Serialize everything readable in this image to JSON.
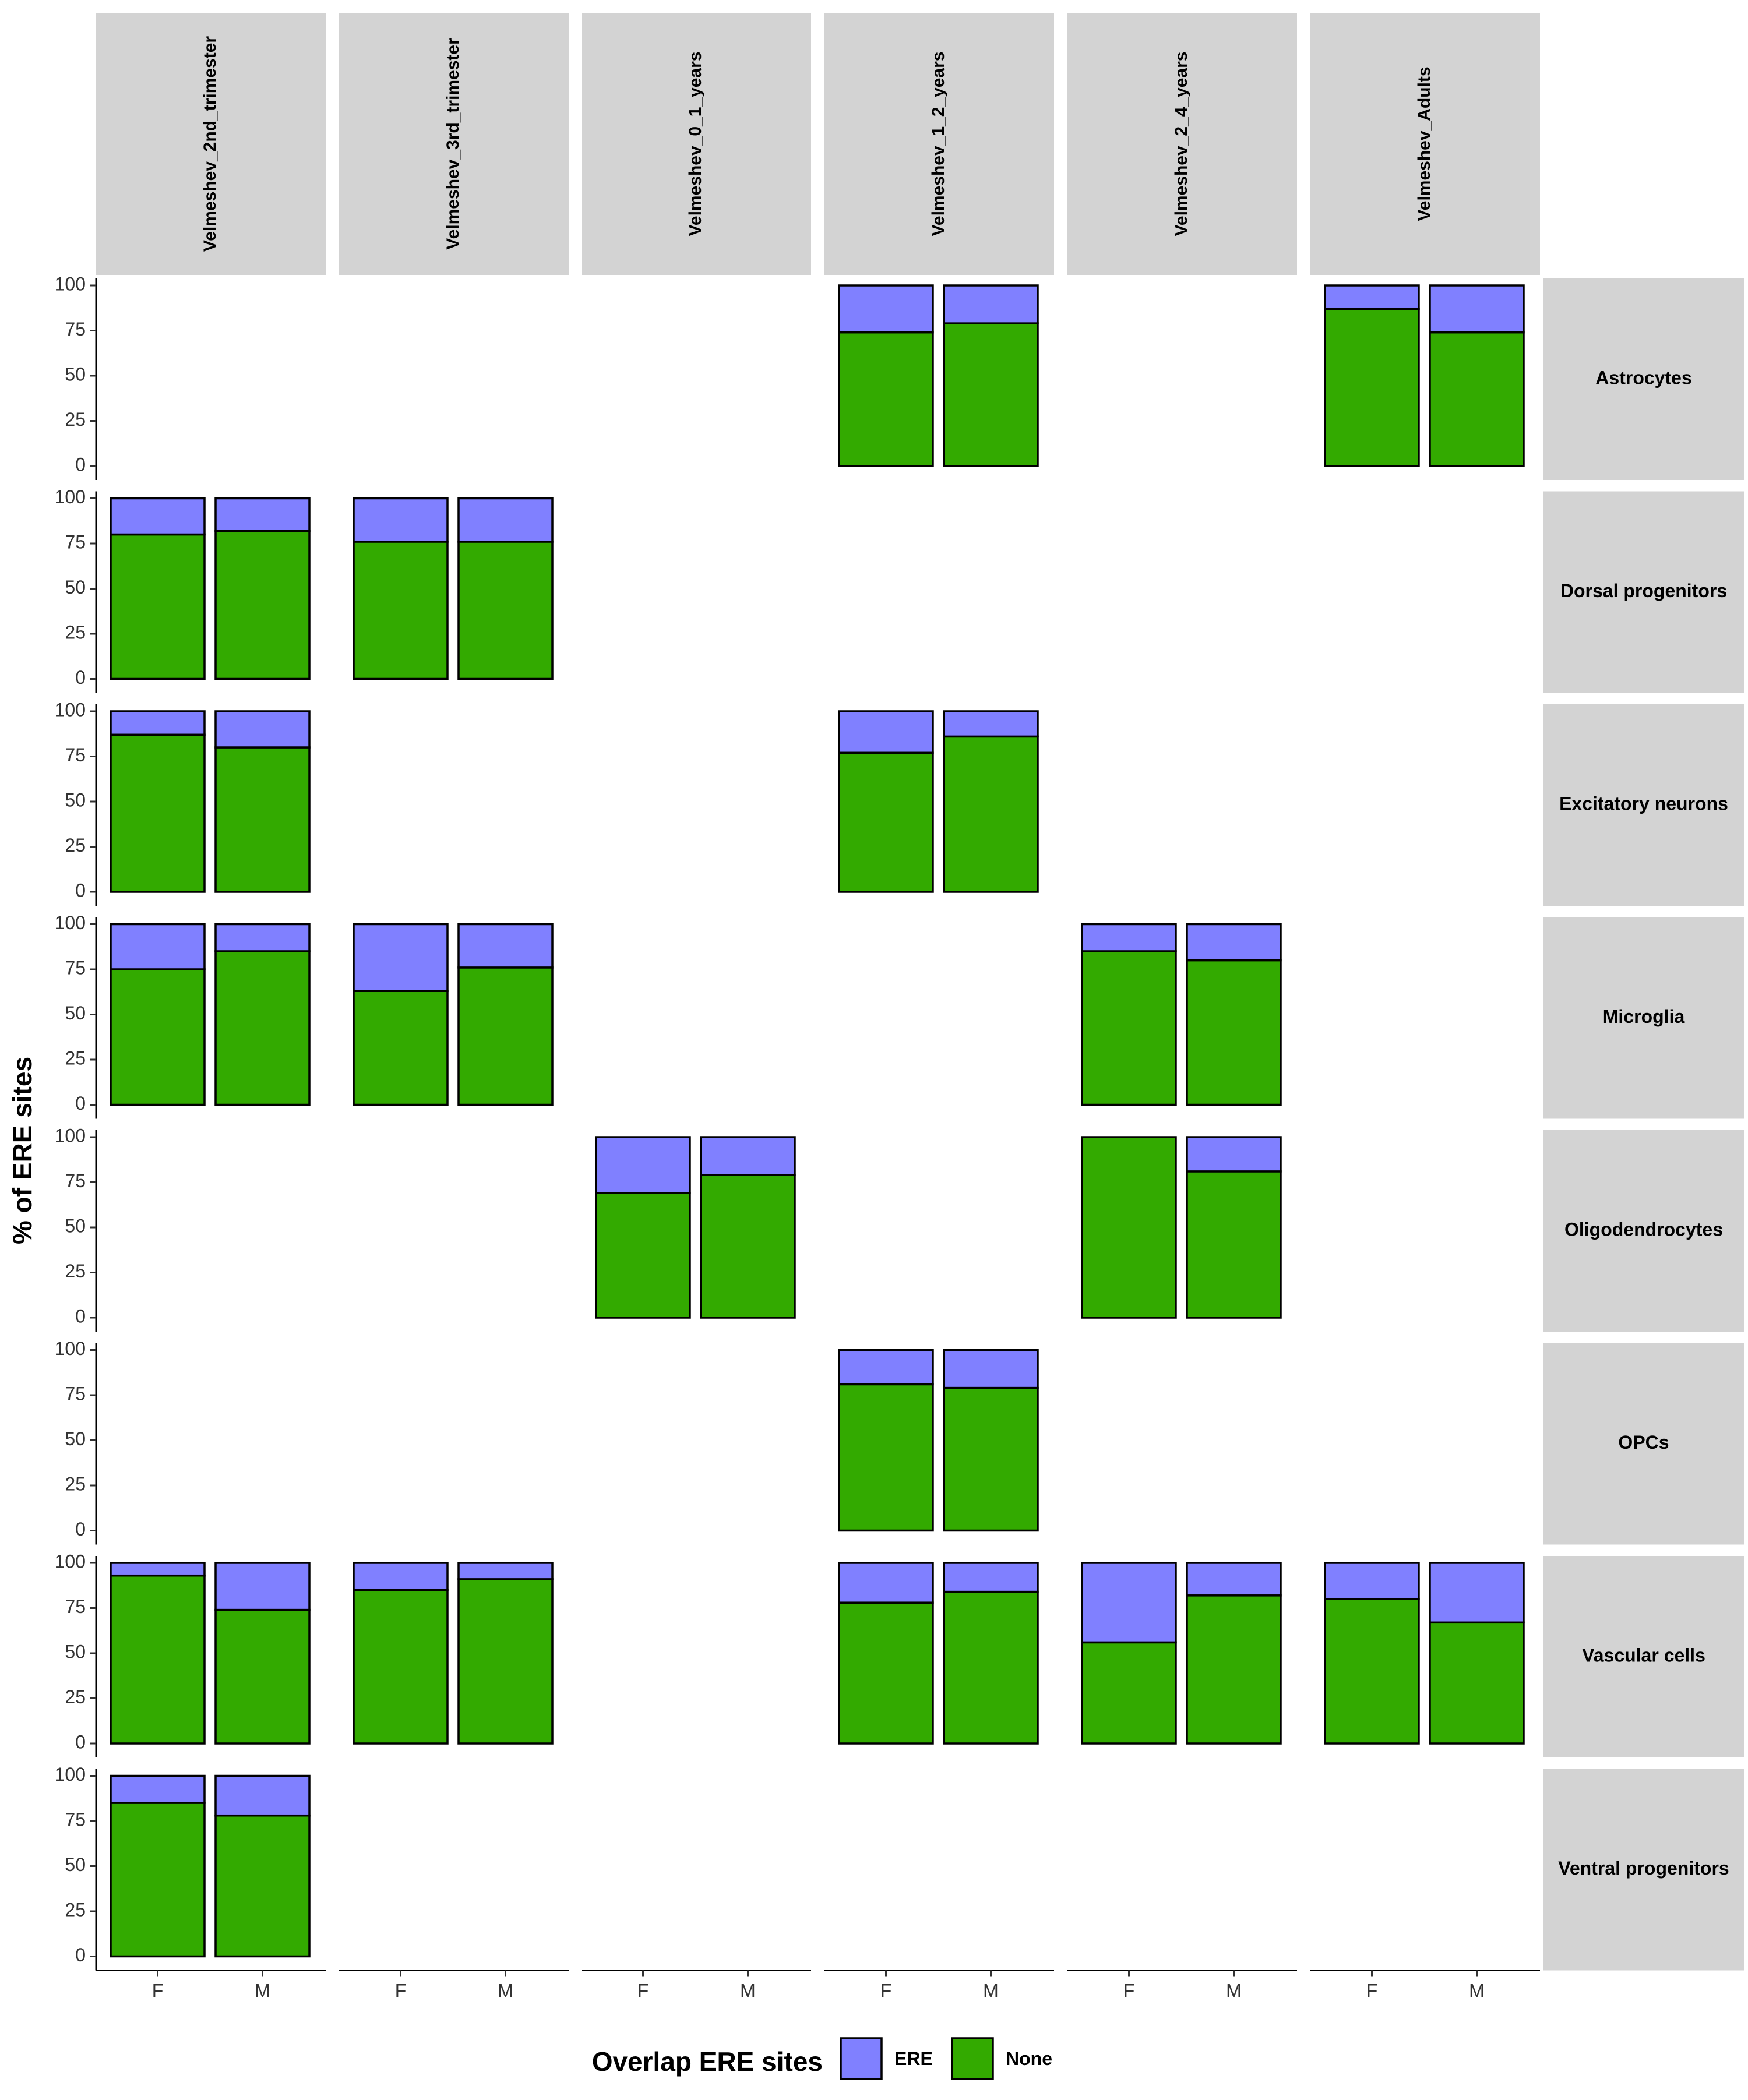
{
  "chart_data": {
    "type": "bar",
    "stacked": true,
    "facet_columns": [
      "Velmeshev_2nd_trimester",
      "Velmeshev_3rd_trimester",
      "Velmeshev_0_1_years",
      "Velmeshev_1_2_years",
      "Velmeshev_2_4_years",
      "Velmeshev_Adults"
    ],
    "facet_rows": [
      "Astrocytes",
      "Dorsal progenitors",
      "Excitatory neurons",
      "Microglia",
      "Oligodendrocytes",
      "OPCs",
      "Vascular cells",
      "Ventral progenitors"
    ],
    "categories": [
      "F",
      "M"
    ],
    "ylabel": "% of ERE sites",
    "xlabel": "",
    "ylim": [
      0,
      100
    ],
    "yticks": [
      "0",
      "25",
      "50",
      "75",
      "100"
    ],
    "legend": {
      "title": "Overlap ERE sites",
      "position": "bottom",
      "items": [
        {
          "label": "ERE",
          "color": "#8080ff"
        },
        {
          "label": "None",
          "color": "#33aa00"
        }
      ]
    },
    "colors": {
      "ERE": "#8080ff",
      "None": "#33aa00",
      "strip": "#d3d3d3"
    },
    "series_note_keys": [
      "None",
      "ERE"
    ],
    "panels": [
      {
        "row": 0,
        "col": 3,
        "None": [
          74,
          79
        ],
        "ERE": [
          26,
          21
        ]
      },
      {
        "row": 0,
        "col": 5,
        "None": [
          87,
          74
        ],
        "ERE": [
          13,
          26
        ]
      },
      {
        "row": 1,
        "col": 0,
        "None": [
          80,
          82
        ],
        "ERE": [
          20,
          18
        ]
      },
      {
        "row": 1,
        "col": 1,
        "None": [
          76,
          76
        ],
        "ERE": [
          24,
          24
        ]
      },
      {
        "row": 2,
        "col": 0,
        "None": [
          87,
          80
        ],
        "ERE": [
          13,
          20
        ]
      },
      {
        "row": 2,
        "col": 3,
        "None": [
          77,
          86
        ],
        "ERE": [
          23,
          14
        ]
      },
      {
        "row": 3,
        "col": 0,
        "None": [
          75,
          85
        ],
        "ERE": [
          25,
          15
        ]
      },
      {
        "row": 3,
        "col": 1,
        "None": [
          63,
          76
        ],
        "ERE": [
          37,
          24
        ]
      },
      {
        "row": 3,
        "col": 4,
        "None": [
          85,
          80
        ],
        "ERE": [
          15,
          20
        ]
      },
      {
        "row": 4,
        "col": 2,
        "None": [
          69,
          79
        ],
        "ERE": [
          31,
          21
        ]
      },
      {
        "row": 4,
        "col": 4,
        "None": [
          100,
          81
        ],
        "ERE": [
          0,
          19
        ]
      },
      {
        "row": 5,
        "col": 3,
        "None": [
          81,
          79
        ],
        "ERE": [
          19,
          21
        ]
      },
      {
        "row": 6,
        "col": 0,
        "None": [
          93,
          74
        ],
        "ERE": [
          7,
          26
        ]
      },
      {
        "row": 6,
        "col": 1,
        "None": [
          85,
          91
        ],
        "ERE": [
          15,
          9
        ]
      },
      {
        "row": 6,
        "col": 3,
        "None": [
          78,
          84
        ],
        "ERE": [
          22,
          16
        ]
      },
      {
        "row": 6,
        "col": 4,
        "None": [
          56,
          82
        ],
        "ERE": [
          44,
          18
        ]
      },
      {
        "row": 6,
        "col": 5,
        "None": [
          80,
          67
        ],
        "ERE": [
          20,
          33
        ]
      },
      {
        "row": 7,
        "col": 0,
        "None": [
          85,
          78
        ],
        "ERE": [
          15,
          22
        ]
      }
    ]
  }
}
